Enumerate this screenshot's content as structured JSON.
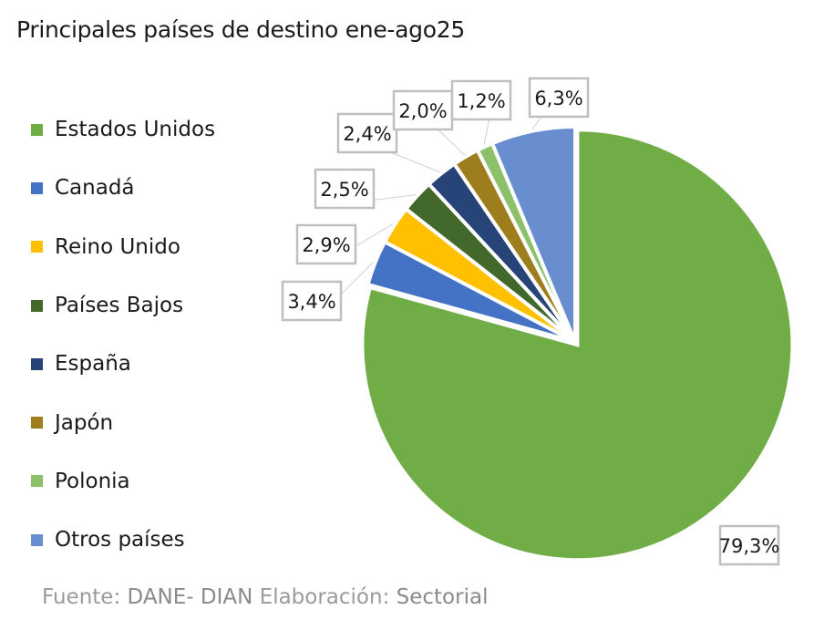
{
  "chart_data": {
    "type": "pie",
    "title": "Principales países de destino ene-ago25",
    "categories": [
      "Estados Unidos",
      "Canadá",
      "Reino Unido",
      "Países Bajos",
      "España",
      "Japón",
      "Polonia",
      "Otros países"
    ],
    "values": [
      79.3,
      3.4,
      2.9,
      2.5,
      2.4,
      2.0,
      1.2,
      6.3
    ],
    "data_labels": [
      "79,3%",
      "3,4%",
      "2,9%",
      "2,5%",
      "2,4%",
      "2,0%",
      "1,2%",
      "6,3%"
    ],
    "colors": [
      "#70ad47",
      "#4472c4",
      "#ffc000",
      "#43682b",
      "#264478",
      "#9e7d1d",
      "#8cc06a",
      "#698ed0"
    ],
    "legend_placement": "left",
    "start": "12 o'clock, clockwise"
  },
  "footer": {
    "fuente_label": "Fuente:",
    "fuente_value": "DANE- DIAN",
    "elaboracion_label": "Elaboración:",
    "elaboracion_value": "Sectorial"
  }
}
